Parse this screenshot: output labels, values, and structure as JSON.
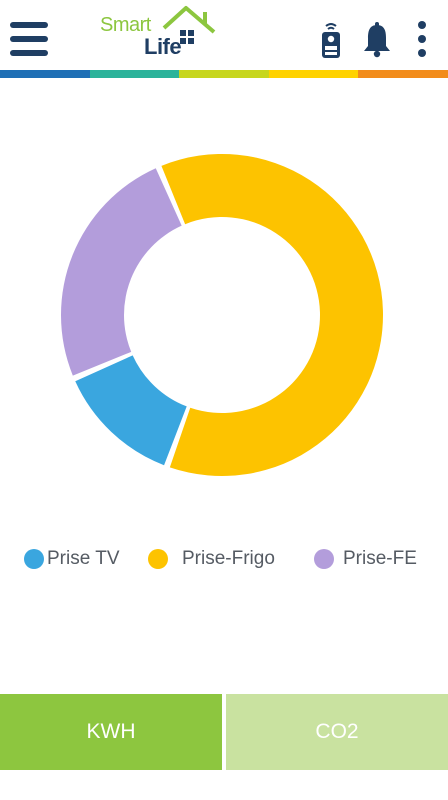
{
  "header": {
    "logo_smart": "Smart",
    "logo_life": "Life",
    "menu_icon": "hamburger-menu-icon",
    "device_icon": "remote-device-icon",
    "notifications_icon": "bell-icon",
    "more_icon": "more-vertical-icon"
  },
  "colors": {
    "navy": "#1f3e63",
    "brand_green": "#8cc63f",
    "stripe": [
      "#1f6fb5",
      "#2bb39a",
      "#c7d61e",
      "#ffd200",
      "#f28c1b"
    ]
  },
  "chart_data": {
    "type": "pie",
    "donut": true,
    "title": "",
    "categories": [
      "Prise TV",
      "Prise-Frigo",
      "Prise-FE"
    ],
    "values": [
      13,
      62,
      25
    ],
    "colors": [
      "#3aa6df",
      "#fdc300",
      "#b39ddb"
    ],
    "legend_position": "bottom"
  },
  "legend": {
    "items": [
      {
        "label": "Prise TV",
        "color": "#3aa6df"
      },
      {
        "label": "Prise-Frigo",
        "color": "#fdc300"
      },
      {
        "label": "Prise-FE",
        "color": "#b39ddb"
      }
    ]
  },
  "tabs": {
    "kwh_label": "KWH",
    "co2_label": "CO2"
  }
}
